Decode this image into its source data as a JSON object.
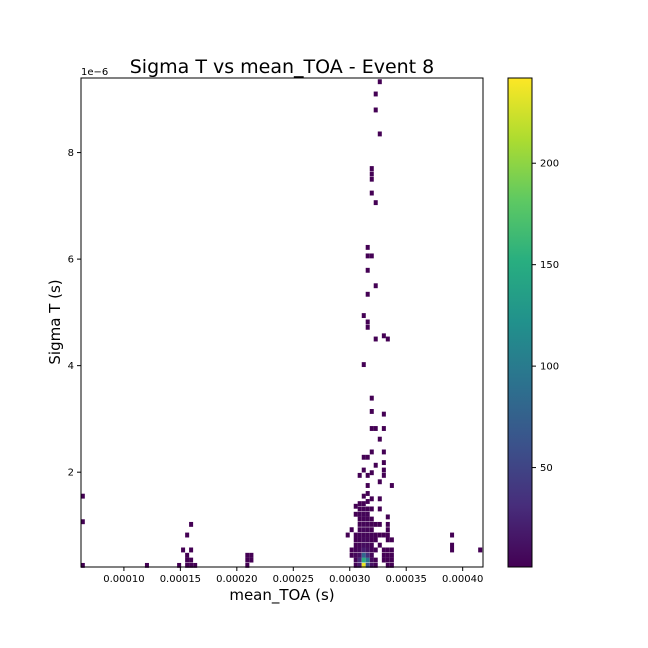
{
  "chart_data": {
    "type": "heatmap",
    "title": "Sigma T vs mean_TOA - Event 8",
    "xlabel": "mean_TOA (s)",
    "ylabel": "Sigma T (s)",
    "xlim": [
      6.2e-05,
      0.000418
    ],
    "ylim": [
      2.2e-07,
      9.4e-06
    ],
    "y_offset_label": "1e−6",
    "y_scale": 1e-06,
    "x_ticks": [
      0.0001,
      0.00015,
      0.0002,
      0.00025,
      0.0003,
      0.00035,
      0.0004
    ],
    "x_tick_labels": [
      "0.00010",
      "0.00015",
      "0.00020",
      "0.00025",
      "0.00030",
      "0.00035",
      "0.00040"
    ],
    "y_ticks": [
      2e-06,
      4e-06,
      6e-06,
      8e-06
    ],
    "y_tick_labels": [
      "2",
      "4",
      "6",
      "8"
    ],
    "colormap": "viridis",
    "colorbar": {
      "vmin": 1,
      "vmax": 242,
      "ticks": [
        50,
        100,
        150,
        200
      ],
      "tick_labels": [
        "50",
        "100",
        "150",
        "200"
      ]
    },
    "bins": {
      "x_count": 100,
      "y_count": 100
    },
    "grid": false,
    "cells": [
      [
        6.36e-05,
        2.5e-07,
        1
      ],
      [
        6.36e-05,
        1.07e-06,
        1
      ],
      [
        6.36e-05,
        1.55e-06,
        1
      ],
      [
        0.0001204,
        2.5e-07,
        1
      ],
      [
        0.0001489,
        2.5e-07,
        1
      ],
      [
        0.0001524,
        5.4e-07,
        1
      ],
      [
        0.000156,
        2.5e-07,
        1
      ],
      [
        0.000156,
        3.5e-07,
        1
      ],
      [
        0.000156,
        4.4e-07,
        1
      ],
      [
        0.000156,
        8.2e-07,
        1
      ],
      [
        0.0001595,
        2.5e-07,
        1
      ],
      [
        0.0001595,
        3.5e-07,
        1
      ],
      [
        0.0001595,
        5.4e-07,
        1
      ],
      [
        0.0001595,
        1.02e-06,
        1
      ],
      [
        0.0001631,
        2.5e-07,
        1
      ],
      [
        0.0002093,
        2.5e-07,
        1
      ],
      [
        0.0002093,
        3.5e-07,
        1
      ],
      [
        0.0002093,
        4.4e-07,
        1
      ],
      [
        0.0002129,
        3.5e-07,
        1
      ],
      [
        0.0002129,
        4.4e-07,
        1
      ],
      [
        0.0002982,
        8.2e-07,
        1
      ],
      [
        0.0003017,
        5.4e-07,
        1
      ],
      [
        0.0003017,
        4.4e-07,
        2
      ],
      [
        0.0003017,
        9.2e-07,
        1
      ],
      [
        0.0003053,
        2.5e-07,
        3
      ],
      [
        0.0003053,
        3.5e-07,
        4
      ],
      [
        0.0003053,
        4.4e-07,
        6
      ],
      [
        0.0003053,
        5.4e-07,
        3
      ],
      [
        0.0003053,
        6.3e-07,
        2
      ],
      [
        0.0003053,
        7.3e-07,
        1
      ],
      [
        0.0003053,
        8.2e-07,
        2
      ],
      [
        0.0003053,
        1.21e-06,
        1
      ],
      [
        0.0003053,
        1.36e-06,
        1
      ],
      [
        0.0003088,
        2.5e-07,
        18
      ],
      [
        0.0003088,
        3.5e-07,
        30
      ],
      [
        0.0003088,
        4.4e-07,
        12
      ],
      [
        0.0003088,
        5.4e-07,
        6
      ],
      [
        0.0003088,
        6.3e-07,
        4
      ],
      [
        0.0003088,
        7.3e-07,
        3
      ],
      [
        0.0003088,
        8.2e-07,
        4
      ],
      [
        0.0003088,
        9.2e-07,
        3
      ],
      [
        0.0003088,
        1.02e-06,
        2
      ],
      [
        0.0003088,
        1.12e-06,
        2
      ],
      [
        0.0003088,
        1.21e-06,
        3
      ],
      [
        0.0003088,
        1.31e-06,
        2
      ],
      [
        0.0003088,
        1.41e-06,
        1
      ],
      [
        0.0003088,
        1.94e-06,
        1
      ],
      [
        0.0003124,
        2.5e-07,
        235
      ],
      [
        0.0003124,
        3.5e-07,
        150
      ],
      [
        0.0003124,
        4.4e-07,
        80
      ],
      [
        0.0003124,
        5.4e-07,
        20
      ],
      [
        0.0003124,
        6.3e-07,
        10
      ],
      [
        0.0003124,
        7.3e-07,
        8
      ],
      [
        0.0003124,
        8.2e-07,
        5
      ],
      [
        0.0003124,
        9.2e-07,
        6
      ],
      [
        0.0003124,
        1.02e-06,
        4
      ],
      [
        0.0003124,
        1.12e-06,
        3
      ],
      [
        0.0003124,
        1.21e-06,
        4
      ],
      [
        0.0003124,
        1.31e-06,
        3
      ],
      [
        0.0003124,
        1.41e-06,
        2
      ],
      [
        0.0003124,
        1.55e-06,
        1
      ],
      [
        0.0003124,
        2.04e-06,
        1
      ],
      [
        0.0003124,
        2.28e-06,
        1
      ],
      [
        0.0003124,
        4.02e-06,
        1
      ],
      [
        0.0003124,
        4.94e-06,
        1
      ],
      [
        0.0003159,
        2.5e-07,
        60
      ],
      [
        0.0003159,
        3.5e-07,
        95
      ],
      [
        0.0003159,
        4.4e-07,
        35
      ],
      [
        0.0003159,
        5.4e-07,
        12
      ],
      [
        0.0003159,
        6.3e-07,
        8
      ],
      [
        0.0003159,
        7.3e-07,
        6
      ],
      [
        0.0003159,
        8.2e-07,
        5
      ],
      [
        0.0003159,
        9.2e-07,
        4
      ],
      [
        0.0003159,
        1.02e-06,
        3
      ],
      [
        0.0003159,
        1.12e-06,
        3
      ],
      [
        0.0003159,
        1.21e-06,
        3
      ],
      [
        0.0003159,
        1.31e-06,
        2
      ],
      [
        0.0003159,
        1.45e-06,
        2
      ],
      [
        0.0003159,
        1.6e-06,
        1
      ],
      [
        0.0003159,
        1.75e-06,
        1
      ],
      [
        0.0003159,
        1.94e-06,
        1
      ],
      [
        0.0003159,
        2.28e-06,
        1
      ],
      [
        0.0003159,
        4.72e-06,
        1
      ],
      [
        0.0003159,
        4.82e-06,
        1
      ],
      [
        0.0003159,
        5.34e-06,
        1
      ],
      [
        0.0003159,
        5.79e-06,
        1
      ],
      [
        0.0003159,
        6.06e-06,
        1
      ],
      [
        0.0003159,
        6.22e-06,
        1
      ],
      [
        0.0003195,
        2.5e-07,
        12
      ],
      [
        0.0003195,
        3.5e-07,
        8
      ],
      [
        0.0003195,
        4.4e-07,
        5
      ],
      [
        0.0003195,
        5.4e-07,
        4
      ],
      [
        0.0003195,
        6.3e-07,
        3
      ],
      [
        0.0003195,
        7.3e-07,
        2
      ],
      [
        0.0003195,
        8.2e-07,
        3
      ],
      [
        0.0003195,
        9.2e-07,
        2
      ],
      [
        0.0003195,
        1.02e-06,
        2
      ],
      [
        0.0003195,
        1.12e-06,
        1
      ],
      [
        0.0003195,
        1.31e-06,
        1
      ],
      [
        0.0003195,
        1.5e-06,
        1
      ],
      [
        0.0003195,
        1.99e-06,
        1
      ],
      [
        0.0003195,
        2.38e-06,
        1
      ],
      [
        0.0003195,
        2.82e-06,
        1
      ],
      [
        0.0003195,
        3.14e-06,
        1
      ],
      [
        0.0003195,
        3.39e-06,
        1
      ],
      [
        0.0003195,
        6.06e-06,
        1
      ],
      [
        0.0003195,
        7.24e-06,
        1
      ],
      [
        0.0003195,
        7.5e-06,
        1
      ],
      [
        0.0003195,
        7.6e-06,
        1
      ],
      [
        0.0003195,
        7.7e-06,
        1
      ],
      [
        0.000323,
        2.5e-07,
        3
      ],
      [
        0.000323,
        3.5e-07,
        2
      ],
      [
        0.000323,
        5.4e-07,
        2
      ],
      [
        0.000323,
        7.3e-07,
        1
      ],
      [
        0.000323,
        8.2e-07,
        1
      ],
      [
        0.000323,
        1.02e-06,
        1
      ],
      [
        0.000323,
        2.13e-06,
        1
      ],
      [
        0.000323,
        2.82e-06,
        1
      ],
      [
        0.000323,
        4.5e-06,
        1
      ],
      [
        0.000323,
        5.5e-06,
        1
      ],
      [
        0.000323,
        7.06e-06,
        1
      ],
      [
        0.000323,
        8.8e-06,
        1
      ],
      [
        0.000323,
        9.1e-06,
        1
      ],
      [
        0.0003266,
        6.3e-07,
        1
      ],
      [
        0.0003266,
        8.2e-07,
        1
      ],
      [
        0.0003266,
        1.02e-06,
        1
      ],
      [
        0.0003266,
        1.31e-06,
        1
      ],
      [
        0.0003266,
        1.5e-06,
        1
      ],
      [
        0.0003266,
        1.82e-06,
        1
      ],
      [
        0.0003266,
        2.62e-06,
        1
      ],
      [
        0.0003266,
        8.35e-06,
        1
      ],
      [
        0.0003266,
        9.33e-06,
        1
      ],
      [
        0.0003302,
        3.5e-07,
        1
      ],
      [
        0.0003302,
        4.4e-07,
        1
      ],
      [
        0.0003302,
        5.4e-07,
        1
      ],
      [
        0.0003302,
        8.2e-07,
        1
      ],
      [
        0.0003302,
        1.94e-06,
        1
      ],
      [
        0.0003302,
        2.04e-06,
        1
      ],
      [
        0.0003302,
        2.18e-06,
        1
      ],
      [
        0.0003302,
        2.38e-06,
        1
      ],
      [
        0.0003302,
        2.82e-06,
        1
      ],
      [
        0.0003302,
        3.09e-06,
        1
      ],
      [
        0.0003302,
        4.56e-06,
        1
      ],
      [
        0.0003337,
        2.5e-07,
        1
      ],
      [
        0.0003337,
        3.5e-07,
        1
      ],
      [
        0.0003337,
        4.4e-07,
        1
      ],
      [
        0.0003337,
        5.4e-07,
        1
      ],
      [
        0.0003337,
        7.3e-07,
        1
      ],
      [
        0.0003337,
        8.2e-07,
        1
      ],
      [
        0.0003337,
        9.2e-07,
        1
      ],
      [
        0.0003337,
        1.02e-06,
        1
      ],
      [
        0.0003337,
        1.16e-06,
        1
      ],
      [
        0.0003337,
        4.5e-06,
        1
      ],
      [
        0.0003373,
        2.5e-07,
        1
      ],
      [
        0.0003373,
        3.5e-07,
        1
      ],
      [
        0.0003373,
        4.4e-07,
        1
      ],
      [
        0.0003373,
        5.4e-07,
        1
      ],
      [
        0.0003373,
        7.3e-07,
        1
      ],
      [
        0.0003373,
        1.75e-06,
        1
      ],
      [
        0.0003906,
        5.4e-07,
        1
      ],
      [
        0.0003906,
        6.3e-07,
        1
      ],
      [
        0.0003906,
        8.2e-07,
        1
      ],
      [
        0.0004155,
        5.4e-07,
        1
      ]
    ]
  }
}
